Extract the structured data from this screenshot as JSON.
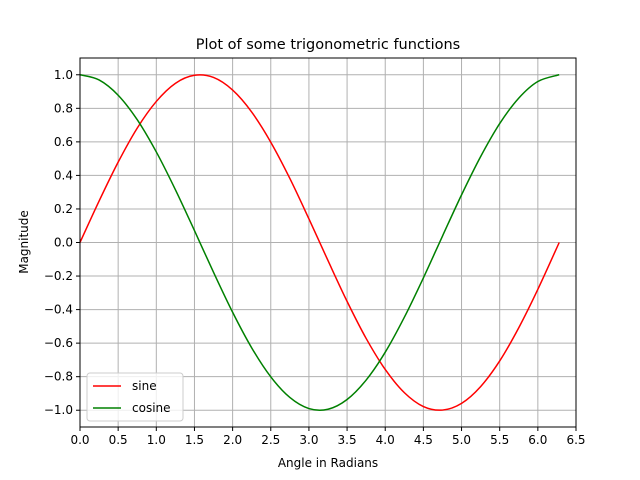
{
  "chart_data": {
    "type": "line",
    "title": "Plot of some trigonometric functions",
    "xlabel": "Angle in Radians",
    "ylabel": "Magnitude",
    "xlim": [
      0,
      6.5
    ],
    "ylim": [
      -1.1,
      1.1
    ],
    "xticks": [
      "0.0",
      "0.5",
      "1.0",
      "1.5",
      "2.0",
      "2.5",
      "3.0",
      "3.5",
      "4.0",
      "4.5",
      "5.0",
      "5.5",
      "6.0",
      "6.5"
    ],
    "yticks": [
      "1.0",
      "0.8",
      "0.6",
      "0.4",
      "0.2",
      "0.0",
      "−0.2",
      "−0.4",
      "−0.6",
      "−0.8",
      "−1.0"
    ],
    "grid": true,
    "legend_position": "lower-left",
    "x": [
      0.0,
      0.25,
      0.5,
      0.75,
      1.0,
      1.25,
      1.5,
      1.75,
      2.0,
      2.25,
      2.5,
      2.75,
      3.0,
      3.25,
      3.5,
      3.75,
      4.0,
      4.25,
      4.5,
      4.75,
      5.0,
      5.25,
      5.5,
      5.75,
      6.0,
      6.28
    ],
    "series": [
      {
        "name": "sine",
        "color": "#ff0000",
        "values": [
          0.0,
          0.247,
          0.479,
          0.682,
          0.841,
          0.949,
          0.997,
          0.984,
          0.909,
          0.778,
          0.598,
          0.382,
          0.141,
          -0.108,
          -0.351,
          -0.572,
          -0.757,
          -0.895,
          -0.978,
          -0.999,
          -0.959,
          -0.859,
          -0.706,
          -0.508,
          -0.279,
          0.0
        ]
      },
      {
        "name": "cosine",
        "color": "#008000",
        "values": [
          1.0,
          0.969,
          0.878,
          0.732,
          0.54,
          0.315,
          0.071,
          -0.178,
          -0.416,
          -0.628,
          -0.801,
          -0.924,
          -0.99,
          -0.994,
          -0.936,
          -0.82,
          -0.654,
          -0.446,
          -0.211,
          0.038,
          0.284,
          0.512,
          0.709,
          0.861,
          0.96,
          1.0
        ]
      }
    ]
  }
}
